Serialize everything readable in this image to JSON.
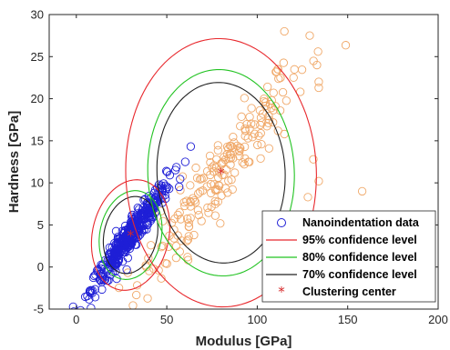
{
  "chart_data": {
    "type": "scatter",
    "title": "",
    "xlabel": "Modulus [GPa]",
    "ylabel": "Hardness [GPa]",
    "xlim": [
      -15,
      200
    ],
    "ylim": [
      -5,
      30
    ],
    "xticks": [
      "0",
      "50",
      "100",
      "150",
      "200"
    ],
    "yticks": [
      "-5",
      "0",
      "5",
      "10",
      "15",
      "20",
      "25",
      "30"
    ],
    "grid": false,
    "legend_position": "bottom-right",
    "colors": {
      "nano": "#1f1fd6",
      "second_cluster": "#f0a868",
      "ci95": "#e8282d",
      "ci80": "#22c322",
      "ci70": "#222222",
      "center": "#d62728"
    },
    "legend": [
      {
        "label": "Nanoindentation data",
        "marker": "circle",
        "color": "#1f1fd6"
      },
      {
        "label": "95% confidence level",
        "marker": "line",
        "color": "#e8282d"
      },
      {
        "label": "80% confidence level",
        "marker": "line",
        "color": "#22c322"
      },
      {
        "label": "70% confidence level",
        "marker": "line",
        "color": "#222222"
      },
      {
        "label": "Clustering center",
        "marker": "star",
        "color": "#d62728"
      }
    ],
    "series": [
      {
        "name": "Nanoindentation data",
        "cluster_a_center": [
          30,
          3.8
        ],
        "cluster_a_count": 420,
        "cluster_b_center": [
          80,
          11.2
        ],
        "cluster_b_count": 200
      }
    ],
    "outliers": [
      {
        "x": 115,
        "y": 28.0
      },
      {
        "x": 129,
        "y": 27.5
      },
      {
        "x": 133,
        "y": 24.0
      },
      {
        "x": 134,
        "y": 22.0
      },
      {
        "x": 134,
        "y": 21.3
      },
      {
        "x": 158,
        "y": 9.0
      },
      {
        "x": 134,
        "y": 10.2
      },
      {
        "x": 128,
        "y": 8.3
      },
      {
        "x": 131,
        "y": 12.8
      },
      {
        "x": 108,
        "y": 19.8
      },
      {
        "x": 115,
        "y": 15.8
      }
    ],
    "ellipses": {
      "cluster_a": [
        {
          "level": "95",
          "cx": 30,
          "cy": 3.8,
          "rx": 40,
          "ry": 5.2,
          "angle_deg": 36
        },
        {
          "level": "80",
          "cx": 30,
          "cy": 3.8,
          "rx": 32,
          "ry": 4.2,
          "angle_deg": 36
        },
        {
          "level": "70",
          "cx": 30,
          "cy": 3.8,
          "rx": 28,
          "ry": 3.6,
          "angle_deg": 36
        }
      ],
      "cluster_b": [
        {
          "level": "95",
          "cx": 80,
          "cy": 11.2,
          "rx": 90,
          "ry": 14.0,
          "angle_deg": 35
        },
        {
          "level": "80",
          "cx": 80,
          "cy": 11.2,
          "rx": 69,
          "ry": 10.8,
          "angle_deg": 35
        },
        {
          "level": "70",
          "cx": 80,
          "cy": 11.2,
          "rx": 60,
          "ry": 9.5,
          "angle_deg": 35
        }
      ]
    },
    "centers": [
      {
        "x": 30,
        "y": 3.8
      },
      {
        "x": 80,
        "y": 11.2
      }
    ]
  }
}
